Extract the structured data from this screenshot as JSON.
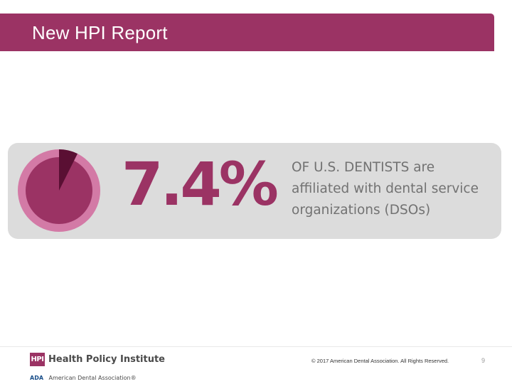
{
  "header": {
    "title": "New HPI Report"
  },
  "stat_card": {
    "percent_text": "7.4%",
    "percent_value": 7.4,
    "description_lines": [
      "OF U.S. DENTISTS are",
      "affiliated with dental service",
      "organizations (DSOs)"
    ],
    "colors": {
      "card_background": "#dcdcdc",
      "pie_ring": "#d37aa6",
      "pie_main": "#9b3364",
      "pie_slice": "#5a0f33",
      "percent": "#9b3364",
      "text": "#727272"
    }
  },
  "footer": {
    "hpi_badge": "HPI",
    "hpi_name": "Health Policy Institute",
    "ada_mark": "ADA",
    "ada_name": "American Dental Association®",
    "copyright": "© 2017 American Dental Association. All Rights Reserved.",
    "page_number": "9"
  }
}
